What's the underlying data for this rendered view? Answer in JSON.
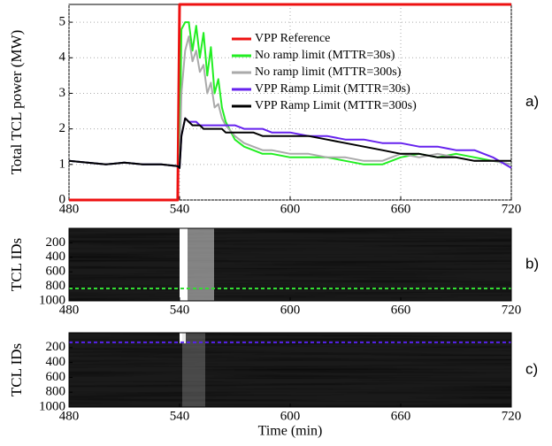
{
  "chart_data": [
    {
      "type": "line",
      "panel_label": "a)",
      "ylabel": "Total TCL power (MW)",
      "xlim": [
        480,
        720
      ],
      "xticks": [
        480,
        540,
        600,
        660,
        720
      ],
      "ylim": [
        0,
        5.5
      ],
      "yticks": [
        0,
        1,
        2,
        3,
        4,
        5
      ],
      "grid": true,
      "x": [
        480,
        490,
        500,
        510,
        520,
        530,
        539,
        540,
        541,
        543,
        545,
        547,
        549,
        551,
        553,
        555,
        557,
        559,
        561,
        563,
        565,
        570,
        575,
        580,
        585,
        590,
        600,
        610,
        620,
        630,
        640,
        650,
        660,
        670,
        680,
        690,
        700,
        710,
        720
      ],
      "series": [
        {
          "name": "VPP Reference",
          "color": "#ee1111",
          "width": 3,
          "values": [
            0,
            0,
            0,
            0,
            0,
            0,
            0,
            5.5,
            5.5,
            5.5,
            5.5,
            5.5,
            5.5,
            5.5,
            5.5,
            5.5,
            5.5,
            5.5,
            5.5,
            5.5,
            5.5,
            5.5,
            5.5,
            5.5,
            5.5,
            5.5,
            5.5,
            5.5,
            5.5,
            5.5,
            5.5,
            5.5,
            5.5,
            5.5,
            5.5,
            5.5,
            5.5,
            5.5,
            5.5
          ]
        },
        {
          "name": "No ramp limit (MTTR=30s)",
          "color": "#22ee22",
          "width": 2,
          "values": [
            1.1,
            1.05,
            1.0,
            1.05,
            1.0,
            1.0,
            0.95,
            0.9,
            4.8,
            5.0,
            5.0,
            4.2,
            4.9,
            4.0,
            4.7,
            3.5,
            4.3,
            3.0,
            3.4,
            2.6,
            2.2,
            1.7,
            1.5,
            1.4,
            1.3,
            1.3,
            1.2,
            1.2,
            1.2,
            1.1,
            1.0,
            1.0,
            1.2,
            1.3,
            1.2,
            1.3,
            1.2,
            1.1,
            1.0
          ]
        },
        {
          "name": "No ramp limit (MTTR=300s)",
          "color": "#aaaaaa",
          "width": 2,
          "values": [
            1.1,
            1.05,
            1.0,
            1.05,
            1.0,
            1.0,
            0.95,
            0.9,
            3.0,
            4.2,
            4.6,
            3.9,
            4.2,
            3.6,
            3.8,
            3.0,
            3.3,
            2.6,
            2.7,
            2.3,
            2.1,
            1.8,
            1.6,
            1.5,
            1.4,
            1.4,
            1.3,
            1.3,
            1.2,
            1.2,
            1.1,
            1.1,
            1.3,
            1.2,
            1.3,
            1.2,
            1.1,
            1.1,
            1.0
          ]
        },
        {
          "name": "VPP Ramp Limit (MTTR=30s)",
          "color": "#6622ee",
          "width": 2,
          "values": [
            1.1,
            1.05,
            1.0,
            1.05,
            1.0,
            1.0,
            0.95,
            0.9,
            1.8,
            2.3,
            2.2,
            2.2,
            2.2,
            2.1,
            2.1,
            2.1,
            2.1,
            2.1,
            2.1,
            2.1,
            2.1,
            2.1,
            2.0,
            2.0,
            2.0,
            1.9,
            1.9,
            1.8,
            1.8,
            1.7,
            1.7,
            1.6,
            1.6,
            1.5,
            1.5,
            1.4,
            1.4,
            1.2,
            0.9
          ]
        },
        {
          "name": "VPP Ramp Limit (MTTR=300s)",
          "color": "#000000",
          "width": 2,
          "values": [
            1.1,
            1.05,
            1.0,
            1.05,
            1.0,
            1.0,
            0.95,
            0.9,
            1.8,
            2.3,
            2.2,
            2.1,
            2.1,
            2.1,
            2.0,
            2.0,
            2.0,
            2.0,
            2.0,
            2.0,
            1.9,
            1.9,
            1.9,
            1.9,
            1.8,
            1.8,
            1.8,
            1.8,
            1.7,
            1.6,
            1.5,
            1.4,
            1.3,
            1.3,
            1.2,
            1.2,
            1.1,
            1.1,
            1.1
          ]
        }
      ]
    },
    {
      "type": "heatmap",
      "panel_label": "b)",
      "ylabel": "TCL IDs",
      "xlim": [
        480,
        720
      ],
      "xticks": [
        480,
        540,
        600,
        660,
        720
      ],
      "ylim": [
        0,
        1000
      ],
      "yticks": [
        200,
        400,
        600,
        800,
        1000
      ],
      "y_inverted": true,
      "grid": false,
      "marker": {
        "value": 830,
        "color": "#33dd33"
      }
    },
    {
      "type": "heatmap",
      "panel_label": "c)",
      "ylabel": "TCL IDs",
      "xlabel": "Time (min)",
      "xlim": [
        480,
        720
      ],
      "xticks": [
        480,
        540,
        600,
        660,
        720
      ],
      "ylim": [
        0,
        1000
      ],
      "yticks": [
        200,
        400,
        600,
        800,
        1000
      ],
      "y_inverted": true,
      "grid": false,
      "marker": {
        "value": 130,
        "color": "#5522ee"
      }
    }
  ]
}
